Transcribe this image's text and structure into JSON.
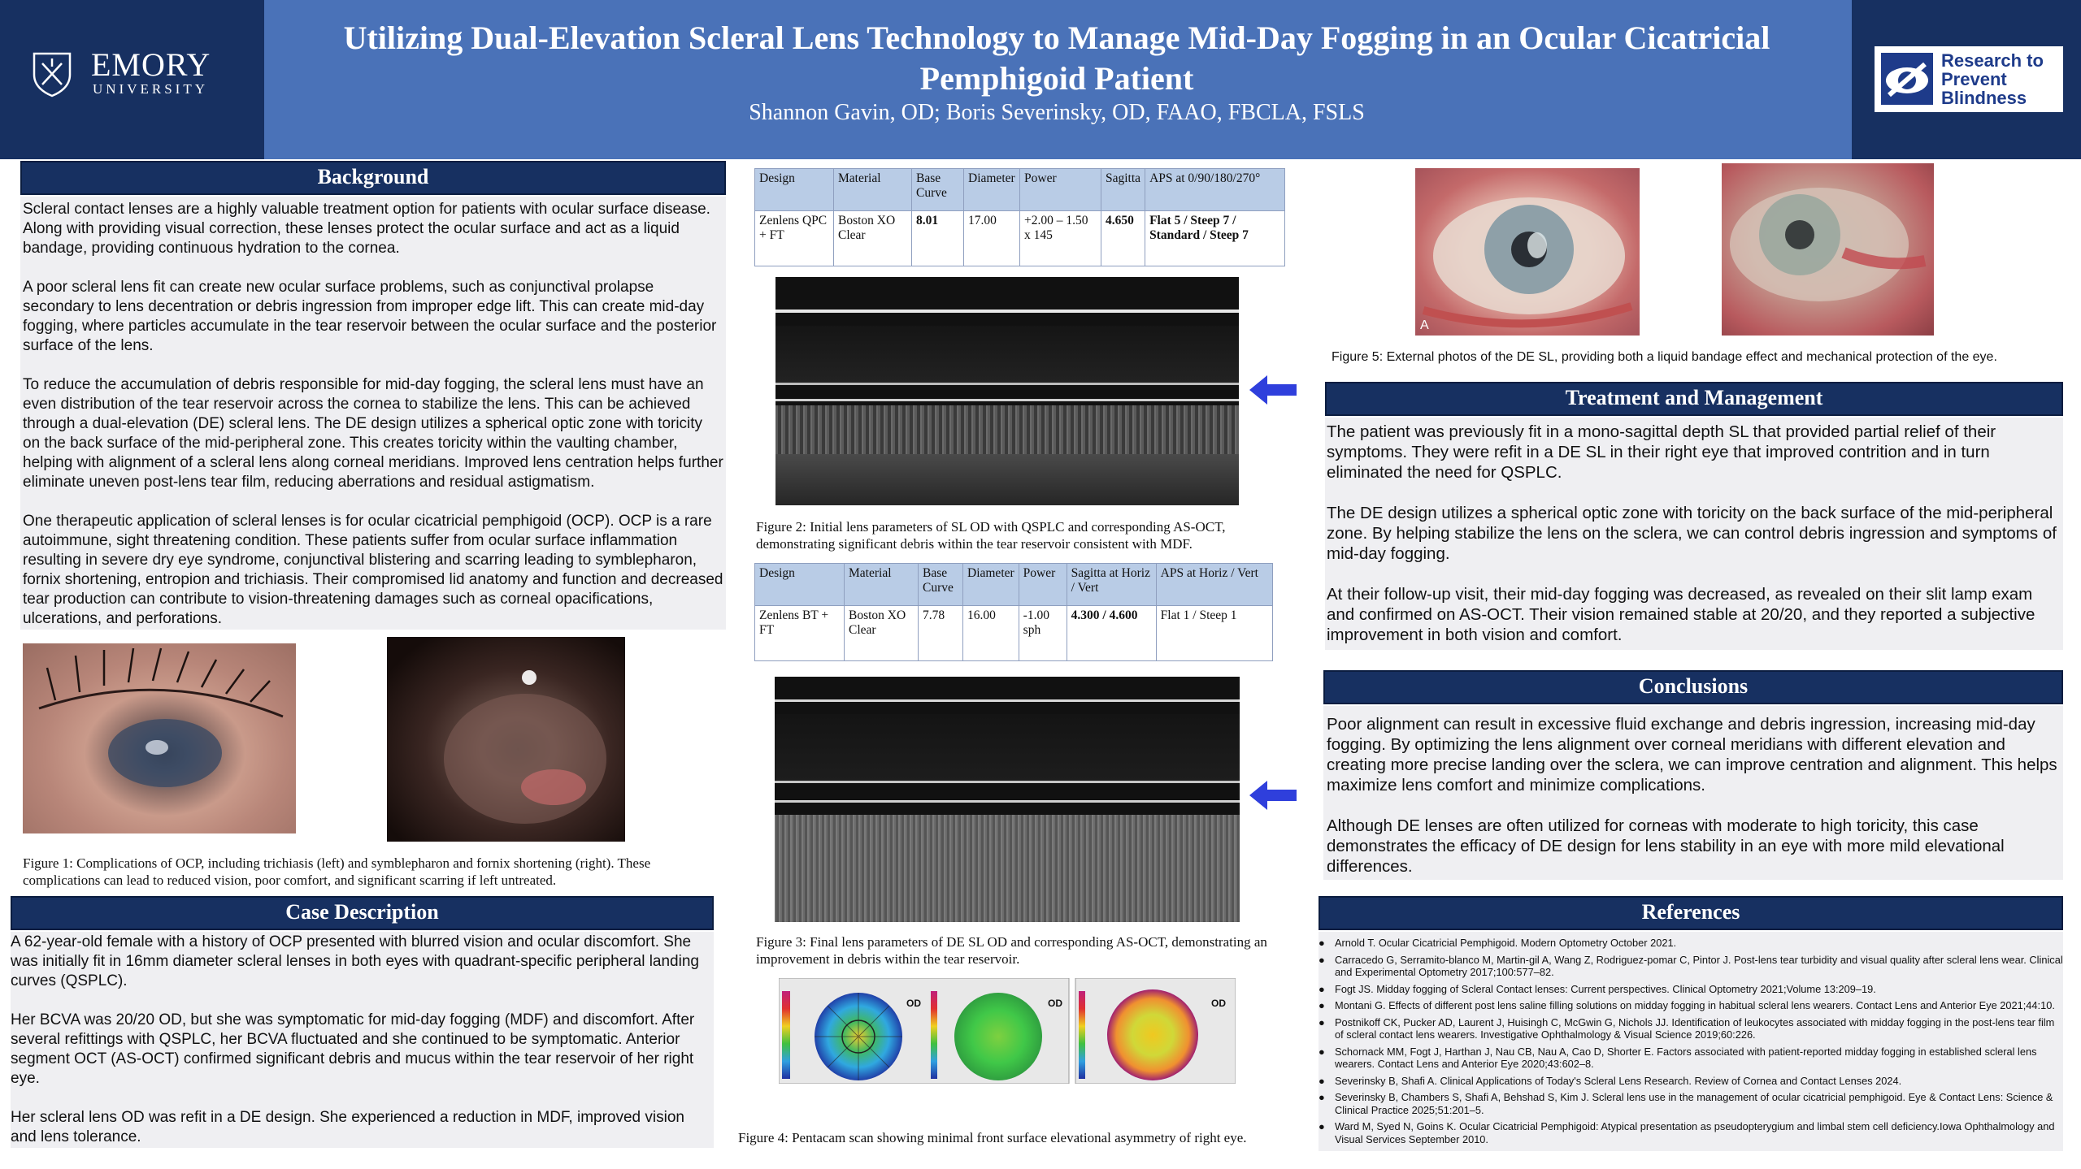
{
  "header": {
    "title": "Utilizing Dual-Elevation Scleral Lens Technology to Manage Mid-Day Fogging in an Ocular Cicatricial Pemphigoid Patient",
    "authors": "Shannon Gavin, OD; Boris Severinsky, OD, FAAO, FBCLA, FSLS",
    "emory_name": "EMORY",
    "emory_sub": "UNIVERSITY",
    "rpb_text": [
      "Research to",
      "Prevent",
      "Blindness"
    ]
  },
  "background": {
    "heading": "Background",
    "paragraphs": [
      "Scleral contact lenses are a highly valuable treatment option for patients with ocular surface disease. Along with providing visual correction, these lenses protect the ocular surface and act as a liquid bandage, providing continuous hydration to the cornea.",
      "A poor scleral lens fit can create new ocular surface problems, such as conjunctival prolapse secondary to lens decentration or debris ingression from improper edge lift. This can create mid-day fogging, where particles accumulate in the tear reservoir between the ocular surface and the posterior surface of the lens.",
      "To reduce the accumulation of debris responsible for mid-day fogging, the scleral lens must have an even distribution of the tear reservoir across the cornea to stabilize the lens. This can be achieved through a dual-elevation (DE) scleral lens. The DE design utilizes a spherical optic zone with toricity on the back surface of the mid-peripheral zone. This creates toricity within the vaulting chamber, helping with alignment of a scleral lens along corneal meridians. Improved lens centration helps further eliminate uneven post-lens tear film, reducing aberrations and residual astigmatism.",
      "One therapeutic application of scleral lenses is for ocular cicatricial pemphigoid (OCP). OCP is a rare autoimmune, sight threatening condition. These patients suffer from ocular surface inflammation resulting in severe dry eye syndrome, conjunctival blistering and scarring leading to symblepharon, fornix shortening, entropion and trichiasis. Their compromised lid anatomy and function and decreased tear production can contribute to vision-threatening damages such as corneal opacifications, ulcerations, and perforations."
    ]
  },
  "figure1_caption": "Figure 1: Complications of OCP, including trichiasis (left) and symblepharon and fornix shortening (right). These complications can lead to reduced vision, poor comfort, and significant scarring if left untreated.",
  "case": {
    "heading": "Case Description",
    "paragraphs": [
      "A 62-year-old female with a history of OCP presented with blurred vision and ocular discomfort. She was initially fit in 16mm diameter scleral lenses in both eyes with quadrant-specific peripheral landing curves (QSPLC).",
      "Her BCVA was 20/20 OD, but she was symptomatic for mid-day fogging (MDF) and discomfort. After several refittings with QSPLC, her BCVA fluctuated and she continued to be symptomatic. Anterior segment OCT (AS-OCT) confirmed significant debris and mucus within the tear reservoir of her right eye.",
      "Her scleral lens OD was refit in a DE design. She experienced a reduction in MDF, improved vision and lens tolerance."
    ]
  },
  "table1": {
    "headers": [
      "Design",
      "Material",
      "Base Curve",
      "Diameter",
      "Power",
      "Sagitta",
      "APS at 0/90/180/270°"
    ],
    "row": [
      "Zenlens QPC + FT",
      "Boston XO Clear",
      "8.01",
      "17.00",
      "+2.00 – 1.50 x 145",
      "4.650",
      "Flat 5 / Steep 7 / Standard / Steep 7"
    ]
  },
  "figure2_caption": "Figure 2: Initial lens parameters of SL OD with QSPLC and corresponding AS-OCT, demonstrating significant debris within the tear reservoir consistent with MDF.",
  "table2": {
    "headers": [
      "Design",
      "Material",
      "Base Curve",
      "Diameter",
      "Power",
      "Sagitta at Horiz / Vert",
      "APS at Horiz / Vert"
    ],
    "row": [
      "Zenlens BT + FT",
      "Boston XO Clear",
      "7.78",
      "16.00",
      "-1.00 sph",
      "4.300 / 4.600",
      "Flat 1 / Steep 1"
    ]
  },
  "figure3_caption": "Figure 3: Final lens parameters of DE SL OD and corresponding AS-OCT, demonstrating an improvement in debris within the tear reservoir.",
  "figure4_caption": "Figure 4: Pentacam scan showing minimal front surface elevational asymmetry of right eye.",
  "pentacam": {
    "label_od": "OD",
    "label_a": "A"
  },
  "figure5_caption": "Figure 5: External photos of the DE SL, providing both a liquid bandage effect and mechanical protection of the eye.",
  "treatment": {
    "heading": "Treatment and Management",
    "paragraphs": [
      "The patient was previously fit in a mono-sagittal depth SL that provided partial relief of their symptoms. They were refit in a DE SL in their right eye that improved contrition and in turn eliminated the need for QSPLC.",
      "The DE design utilizes a spherical optic zone with toricity on the back surface of the mid-peripheral zone. By helping stabilize the lens on the sclera, we can control debris ingression and symptoms of mid-day fogging.",
      "At their follow-up visit, their mid-day fogging was decreased, as revealed on their slit lamp exam and confirmed on AS-OCT. Their vision remained stable at 20/20, and they reported a subjective improvement in both vision and comfort."
    ]
  },
  "conclusions": {
    "heading": "Conclusions",
    "paragraphs": [
      "Poor alignment can result in excessive fluid exchange and debris ingression, increasing mid-day fogging. By optimizing the lens alignment over corneal meridians with different elevation and creating more precise landing over the sclera, we can improve centration and alignment. This helps maximize lens comfort and minimize complications.",
      "Although DE lenses are often utilized for corneas with moderate to high toricity, this case demonstrates the efficacy of DE design for lens stability in an eye with more mild elevational differences."
    ]
  },
  "references": {
    "heading": "References",
    "items": [
      "Arnold T. Ocular Cicatricial Pemphigoid. Modern Optometry October 2021.",
      "Carracedo G, Serramito-blanco M, Martin-gil A, Wang Z, Rodriguez-pomar C, Pintor J. Post-lens tear turbidity and visual quality after scleral lens wear. Clinical and Experimental Optometry 2017;100:577–82.",
      "Fogt JS. Midday fogging of Scleral Contact lenses: Current perspectives. Clinical Optometry 2021;Volume 13:209–19.",
      "Montani G. Effects of different post lens saline filling solutions on midday fogging in habitual scleral lens wearers. Contact Lens and Anterior Eye 2021;44:10.",
      "Postnikoff CK, Pucker AD, Laurent J, Huisingh C, McGwin G, Nichols JJ. Identification of leukocytes associated with midday fogging in the post-lens tear film of scleral contact lens wearers. Investigative Ophthalmology & Visual Science 2019;60:226.",
      "Schornack MM, Fogt J, Harthan J, Nau CB, Nau A, Cao D, Shorter E. Factors associated with patient-reported midday fogging in established scleral lens wearers. Contact Lens and Anterior Eye 2020;43:602–8.",
      "Severinsky B, Shafi A. Clinical Applications of Today's Scleral Lens Research. Review of Cornea and Contact Lenses 2024.",
      "Severinsky B, Chambers S, Shafi A, Behshad S, Kim J. Scleral lens use in the management of ocular cicatricial pemphigoid. Eye & Contact Lens: Science & Clinical Practice 2025;51:201–5.",
      "Ward M, Syed N, Goins K. Ocular Cicatricial Pemphigoid: Atypical presentation as pseudopterygium and limbal stem cell deficiency.Iowa Ophthalmology and Visual Services September 2010."
    ]
  }
}
